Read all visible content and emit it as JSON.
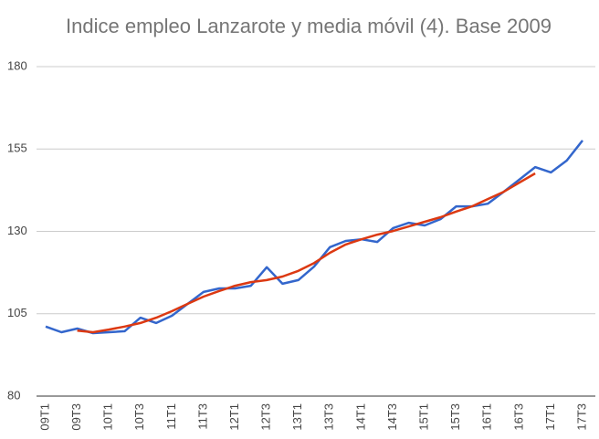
{
  "chart_data": {
    "type": "line",
    "title": "Indice empleo Lanzarote y media móvil (4). Base 2009",
    "categories": [
      "09T1",
      null,
      "09T3",
      null,
      "10T1",
      null,
      "10T3",
      null,
      "11T1",
      null,
      "11T3",
      null,
      "12T1",
      null,
      "12T3",
      null,
      "13T1",
      null,
      "13T3",
      null,
      "14T1",
      null,
      "14T3",
      null,
      "15T1",
      null,
      "15T3",
      null,
      "16T1",
      null,
      "16T3",
      null,
      "17T1",
      null,
      "17T3"
    ],
    "series": [
      {
        "color": "#3366cc",
        "values": [
          101.1,
          99.4,
          100.5,
          99.1,
          99.4,
          99.7,
          103.8,
          102.2,
          104.4,
          108.0,
          111.6,
          112.7,
          112.7,
          113.5,
          119.1,
          114.1,
          115.2,
          119.3,
          125.2,
          127.1,
          127.6,
          126.8,
          131.0,
          132.6,
          131.8,
          133.7,
          137.6,
          137.6,
          138.4,
          142.0,
          145.7,
          149.5,
          147.9,
          151.5,
          157.6
        ]
      },
      {
        "color": "#dc3912",
        "values": [
          null,
          null,
          99.9,
          99.4,
          100.2,
          101.1,
          102.2,
          103.8,
          105.8,
          108.0,
          110.2,
          111.9,
          113.5,
          114.6,
          115.2,
          116.3,
          118.0,
          120.4,
          123.5,
          126.0,
          127.6,
          129.0,
          130.1,
          131.5,
          132.9,
          134.3,
          136.0,
          137.6,
          139.8,
          142.0,
          144.8,
          147.6,
          null,
          null,
          null
        ]
      }
    ],
    "ylim": [
      80,
      180
    ],
    "yticks": [
      80,
      105,
      130,
      155,
      180
    ],
    "grid": true
  }
}
